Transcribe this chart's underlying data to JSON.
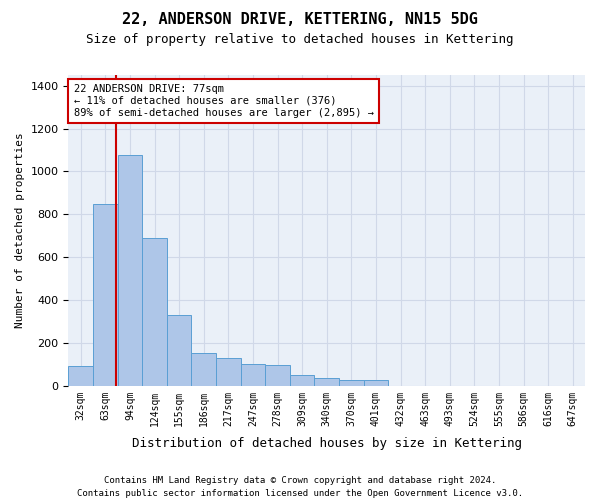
{
  "title": "22, ANDERSON DRIVE, KETTERING, NN15 5DG",
  "subtitle": "Size of property relative to detached houses in Kettering",
  "xlabel": "Distribution of detached houses by size in Kettering",
  "ylabel": "Number of detached properties",
  "bar_values": [
    90,
    850,
    1075,
    690,
    330,
    155,
    130,
    100,
    95,
    50,
    35,
    25,
    25,
    0,
    0,
    0,
    0,
    0,
    0,
    0,
    0
  ],
  "bin_labels": [
    "32sqm",
    "63sqm",
    "94sqm",
    "124sqm",
    "155sqm",
    "186sqm",
    "217sqm",
    "247sqm",
    "278sqm",
    "309sqm",
    "340sqm",
    "370sqm",
    "401sqm",
    "432sqm",
    "463sqm",
    "493sqm",
    "524sqm",
    "555sqm",
    "586sqm",
    "616sqm",
    "647sqm"
  ],
  "bar_color": "#aec6e8",
  "bar_edge_color": "#5a9fd4",
  "grid_color": "#d0d8e8",
  "background_color": "#eaf0f8",
  "annotation_box_color": "#ffffff",
  "annotation_border_color": "#cc0000",
  "vline_color": "#cc0000",
  "annotation_text_line1": "22 ANDERSON DRIVE: 77sqm",
  "annotation_text_line2": "← 11% of detached houses are smaller (376)",
  "annotation_text_line3": "89% of semi-detached houses are larger (2,895) →",
  "ylim": [
    0,
    1450
  ],
  "yticks": [
    0,
    200,
    400,
    600,
    800,
    1000,
    1200,
    1400
  ],
  "footnote1": "Contains HM Land Registry data © Crown copyright and database right 2024.",
  "footnote2": "Contains public sector information licensed under the Open Government Licence v3.0."
}
